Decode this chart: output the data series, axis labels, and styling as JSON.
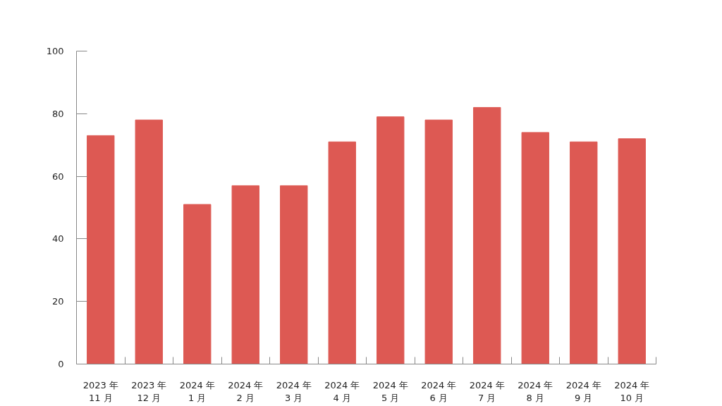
{
  "chart_data": {
    "type": "bar",
    "categories": [
      "2023 年\n11 月",
      "2023 年\n12 月",
      "2024 年\n1 月",
      "2024 年\n2 月",
      "2024 年\n3 月",
      "2024 年\n4 月",
      "2024 年\n5 月",
      "2024 年\n6 月",
      "2024 年\n7 月",
      "2024 年\n8 月",
      "2024 年\n9 月",
      "2024 年\n10 月"
    ],
    "values": [
      73,
      78,
      51,
      57,
      57,
      71,
      79,
      78,
      82,
      74,
      71,
      72
    ],
    "color": "#dd5953",
    "ylim": [
      0,
      100
    ],
    "yticks": [
      0,
      20,
      40,
      60,
      80,
      100
    ],
    "grid": false
  }
}
